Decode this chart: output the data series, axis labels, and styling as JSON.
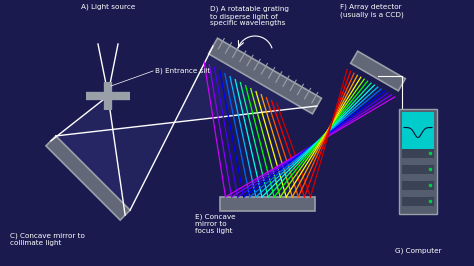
{
  "bg_color": "#1a1a4e",
  "mirror_color": "#636878",
  "mirror_edge_color": "#9aa0a8",
  "grating_color": "#636878",
  "rainbow_colors": [
    "#cc00ff",
    "#8800ff",
    "#4400ff",
    "#0000ff",
    "#0066ff",
    "#00bbff",
    "#00ffee",
    "#00ff88",
    "#00ff00",
    "#88ff00",
    "#ffff00",
    "#ffaa00",
    "#ff5500",
    "#ff0000",
    "#cc0000"
  ],
  "white_color": "#ffffff",
  "text_color": "#ffffff",
  "screen_color": "#00cccc",
  "body_color": "#555e6e",
  "slot_color": "#3a4255",
  "led_color": "#00cc44",
  "beam_fill": "#2a2a6a",
  "label_A": "A) Light source",
  "label_B": "B) Entrance slit",
  "label_C": "C) Concave mirror to\ncollimate light",
  "label_D": "D) A rotatable grating\nto disperse light of\nspecific wavelengths",
  "label_E": "E) Concave\nmirror to\nfocus light",
  "label_F": "F) Array detector\n(usually is a CCD)",
  "label_G": "G) Computer"
}
